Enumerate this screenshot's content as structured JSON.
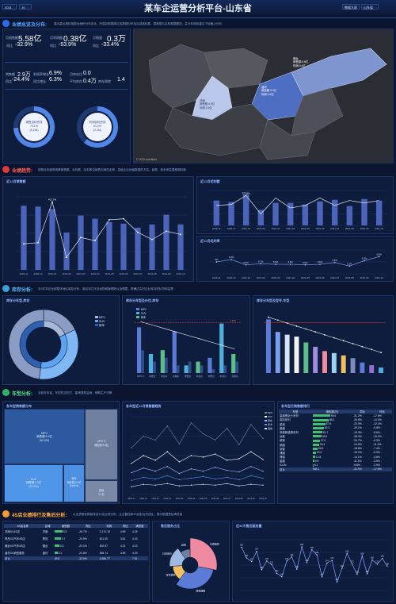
{
  "header": {
    "title": "某车企运营分析平台-山东省",
    "year": "2021",
    "month": "10",
    "report_btn": "数据大屏",
    "report_btn2": "自定义库",
    "region_btn": "山东省"
  },
  "section1": {
    "title": "业绩总览及分布:",
    "desc": "展示重点指标指数及面积分布变化，所属总数据库拉连数据分布及区域指标数，整数据与实际数据跟进，并分析指标建议下轮截止分析"
  },
  "kpi": [
    {
      "label": "月销售额",
      "value": "5.58亿",
      "sub_label": "同比",
      "sub": "-32.9%"
    },
    {
      "label": "月利润额",
      "value": "0.38亿",
      "sub_label": "同比",
      "sub": "-53.9%"
    },
    {
      "label": "月销量",
      "value": "0.3万",
      "sub_label": "同比",
      "sub": "-33.4%"
    }
  ],
  "kpi2": [
    {
      "label": "销售额",
      "value": "2.9万",
      "sub_label": "同比",
      "sub": "-24.4%"
    },
    {
      "label": "利润率增长",
      "value": "6.9%",
      "sub_label": "同比增长",
      "sub": "6.3%"
    },
    {
      "label": "月库存比",
      "value": "0.0",
      "sub_label": "平均库存",
      "sub": "0.4万"
    },
    {
      "label": "库存周转",
      "value": "1.4"
    }
  ],
  "donuts": [
    {
      "title": "销售目标完成",
      "value": "74.1%",
      "sub": "(8,196)",
      "pct": 0.741
    },
    {
      "title": "利润目标完成",
      "value": "61.2%",
      "sub": "(2,1M)",
      "pct": 0.612
    }
  ],
  "map": {
    "labels": [
      {
        "name": "烟台",
        "line1": "销售额:5.6亿",
        "line2": "利润:0.4亿"
      },
      {
        "name": "济南",
        "line1": "销售额:4.0亿",
        "line2": "利润:0.3亿"
      },
      {
        "name": "潍坊",
        "line1": "销售额:3.2亿",
        "line2": "利润:0.2亿"
      }
    ],
    "credit": "© 2022 AutoNavi"
  },
  "section2": {
    "title": "业绩趋势:",
    "desc": "按照月份趋势观察销售额、毛利额、毛利率及销售利润的走势，突破企业经营数据的方向、趋势、和未来发展预期判断"
  },
  "trend_left": {
    "title": "近12月销售额",
    "categories": [
      "2020-11",
      "2020-12",
      "2021-01",
      "2021-02",
      "2021-03",
      "2021-04",
      "2021-05",
      "2021-06",
      "2021-07",
      "2021-08",
      "2021-09",
      "2021-10"
    ],
    "bars": [
      7.9,
      7.8,
      7.5,
      4.6,
      6.7,
      6.3,
      5.9,
      5.7,
      5.2,
      5.6,
      6.8,
      5.6
    ],
    "line": [
      2.5,
      2.6,
      6.5,
      1.2,
      3.1,
      2.8,
      4.8,
      4.9,
      3.6,
      2.9,
      3.7,
      3.4
    ],
    "peak_label": "457.7%"
  },
  "trend_right_top": {
    "title": "近12月毛利额",
    "bars": [
      3.2,
      3.0,
      4.0,
      2.0,
      2.9,
      2.9,
      2.7,
      3.1,
      3.3,
      2.5,
      3.4,
      3.2
    ],
    "line": [
      4.0,
      4.2,
      6.0,
      2.3,
      5.5,
      3.5,
      4.0,
      5.5,
      4.0,
      5.0,
      4.5,
      5.0
    ],
    "peak_label": "276.8%"
  },
  "trend_right_bottom": {
    "title": "近12月毛利率",
    "line": [
      6.0,
      6.4,
      5.5,
      5.7,
      5.6,
      5.6,
      5.5,
      5.6,
      5.9,
      5.3,
      6.2,
      6.9
    ]
  },
  "section3": {
    "title": "库存分析:",
    "desc": "对3件本区全部整体地区库存分析，商品非过冷及卖物维管理处以及需要，帮通过实时企业库存的状况和监督"
  },
  "inv_pie": {
    "title": "库存分车型-库存",
    "legend": [
      "MPV",
      "SUV",
      "轿车"
    ],
    "slices": [
      0.18,
      0.34,
      0.48
    ]
  },
  "inv_mid": {
    "title": "库存分车型及价位-库存",
    "legend": [
      "MPV",
      "SUV",
      "轿车"
    ],
    "bars": [
      [
        1.2,
        0.6
      ],
      [
        0.5,
        0.3
      ],
      [
        0.6,
        0.4
      ],
      [
        1.1,
        0.2
      ],
      [
        0.2,
        0.3
      ],
      [
        0.3,
        0.2
      ],
      [
        0.4,
        0.1
      ],
      [
        1.3,
        0.2
      ],
      [
        0.5,
        0.3
      ]
    ],
    "categories": [
      "MPV-K",
      "中低价",
      "中高价",
      "高端价",
      "中低价",
      "中高价",
      "中低价",
      "中高价",
      "高端价"
    ],
    "line_label": "1,100"
  },
  "inv_right": {
    "title": "库存分车型及型号-车型",
    "values": [
      1.37,
      1.05,
      0.98,
      0.93,
      0.78,
      0.67,
      0.56,
      0.51,
      0.45,
      0.38,
      0.27,
      0.2,
      0.14
    ],
    "colors": [
      "#5b7bd6",
      "#7aa0f0",
      "#d7e3f7",
      "#f2f2f2",
      "#5dbe8a",
      "#9f8be0",
      "#f08aa0",
      "#9ad0f0",
      "#f0c060",
      "#7b8cc0",
      "#5b7bd6",
      "#8f70d0",
      "#4fb0e0"
    ]
  },
  "section4": {
    "title": "车型分析:",
    "desc": "对各车系省，车型机去的方，能储清质监地，辅助生产决策"
  },
  "treemap": {
    "title": "各车型销售额分布",
    "cells": [
      {
        "label": "MPV",
        "sub": "销售额:3.3亿",
        "pct": "(62.0%)"
      },
      {
        "label": "SUV",
        "sub": "销售额:1.2亿",
        "pct": "(21.5%)"
      },
      {
        "label": "轿车",
        "sub": "销售额:0.9亿",
        "pct": "(16.5%)"
      },
      {
        "label": "MPV-S",
        "sub": "销售额:0.6亿",
        "pct": ""
      },
      {
        "label": "其他",
        "sub": "0.1亿",
        "pct": ""
      }
    ]
  },
  "lines4": {
    "title": "各车型近12月销售额趋势",
    "legend": [
      "MPV",
      "SUV",
      "轿车",
      "皮卡",
      "其他"
    ]
  },
  "rank": {
    "title": "各车型月销售额排行",
    "headers": [
      "车型",
      "销售额(万)",
      "同比",
      "环比"
    ],
    "rows": [
      [
        "星越黑武士系列",
        "95.4",
        "-31.2%",
        "-17.8%"
      ],
      [
        "嘉际系列",
        "88.1",
        "-30.8%",
        "-14.3%"
      ],
      [
        "星瑞",
        "67.6",
        "-22.9%",
        "-12.4%"
      ],
      [
        "豪越",
        "62.3",
        "-25.1%",
        "-9.8%"
      ],
      [
        "帝豪新能源系列",
        "51.7",
        "-19.3%",
        "-8.6%"
      ],
      [
        "远景",
        "48.2",
        "-28.4%",
        "-15.2%"
      ],
      [
        "缤瑞",
        "37.9",
        "-20.7%",
        "-6.3%"
      ],
      [
        "缤越",
        "33.4",
        "-24.5%",
        "-11.0%"
      ],
      [
        "帝豪",
        "26.5",
        "-18.6%",
        "-7.4%"
      ],
      [
        "博越",
        "19.3",
        "-16.2%",
        "-5.9%"
      ],
      [
        "博瑞",
        "12.8",
        "-14.1%",
        "-4.8%"
      ],
      [
        "星越",
        "9.5",
        "-11.3%",
        "-3.5%"
      ],
      [
        "ICON",
        "6.1",
        "-9.8%",
        "-2.9%"
      ]
    ],
    "total": [
      "总计",
      "558.1",
      "-32.9%",
      "-17.8%"
    ]
  },
  "section5": {
    "title": "4S店业绩排行及售后分析:",
    "desc": "以业绩指标数量排名4S店业绩分析，企业管控和4S店配合完成业，提示数据售后满意度"
  },
  "store_table": {
    "headers": [
      "4S店名称",
      "区域",
      "销售额",
      "同比",
      "利润",
      "同比",
      "满意度"
    ],
    "rows": [
      [
        "济南XX4S店",
        "济南",
        "3.9",
        "-26.7%",
        "2,172.15",
        "4.69",
        "4.25"
      ],
      [
        "青岛XX汽车4S店",
        "青岛",
        "3.7",
        "-24.9%",
        "821.05",
        "3.81",
        "4.33"
      ],
      [
        "烟台XX汽车4S店",
        "烟台",
        "3.3",
        "-23.1%",
        "492.57",
        "4.21",
        "4.10"
      ],
      [
        "潍坊XX销售服务",
        "潍坊",
        "3.1",
        "-21.8%",
        "398.74",
        "3.96",
        "4.29"
      ]
    ],
    "total": [
      "总计",
      "",
      "55.8",
      "-32.9%",
      "2,886.77",
      "",
      "7.51"
    ]
  },
  "svc_pie": {
    "title": "售后服务占比",
    "labels": [
      "车辆维修",
      "保险理赔",
      "零件更换",
      "日常保养",
      "其他"
    ],
    "slices": [
      0.28,
      0.32,
      0.14,
      0.16,
      0.1
    ]
  },
  "svc_line": {
    "title": "近30天售后服务量",
    "values": [
      205,
      184,
      177,
      197,
      161,
      178,
      171,
      154,
      147,
      178,
      186,
      162,
      206,
      175,
      200,
      190,
      147,
      174,
      179,
      137,
      164,
      193,
      172,
      152,
      188,
      153,
      180,
      172,
      183,
      168
    ]
  }
}
